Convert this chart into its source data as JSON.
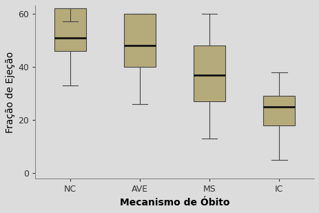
{
  "categories": [
    "NC",
    "AVE",
    "MS",
    "IC"
  ],
  "box_data": [
    {
      "whislo": 33,
      "q1": 46,
      "med": 51,
      "q3": 62,
      "whishi": 57
    },
    {
      "whislo": 26,
      "q1": 40,
      "med": 48,
      "q3": 60,
      "whishi": 60
    },
    {
      "whislo": 13,
      "q1": 27,
      "med": 37,
      "q3": 48,
      "whishi": 60
    },
    {
      "whislo": 5,
      "q1": 18,
      "med": 25,
      "q3": 29,
      "whishi": 38
    }
  ],
  "ylabel": "Fração de Ejeção",
  "xlabel": "Mecanismo de Óbito",
  "ylim": [
    -2,
    63
  ],
  "yticks": [
    0,
    20,
    40,
    60
  ],
  "box_color": "#b5aa7a",
  "median_color": "#111111",
  "line_color": "#444444",
  "background_color": "#dcdcdc",
  "plot_bg_color": "#dcdcdc",
  "label_fontsize": 10,
  "tick_fontsize": 9,
  "box_width": 0.45
}
